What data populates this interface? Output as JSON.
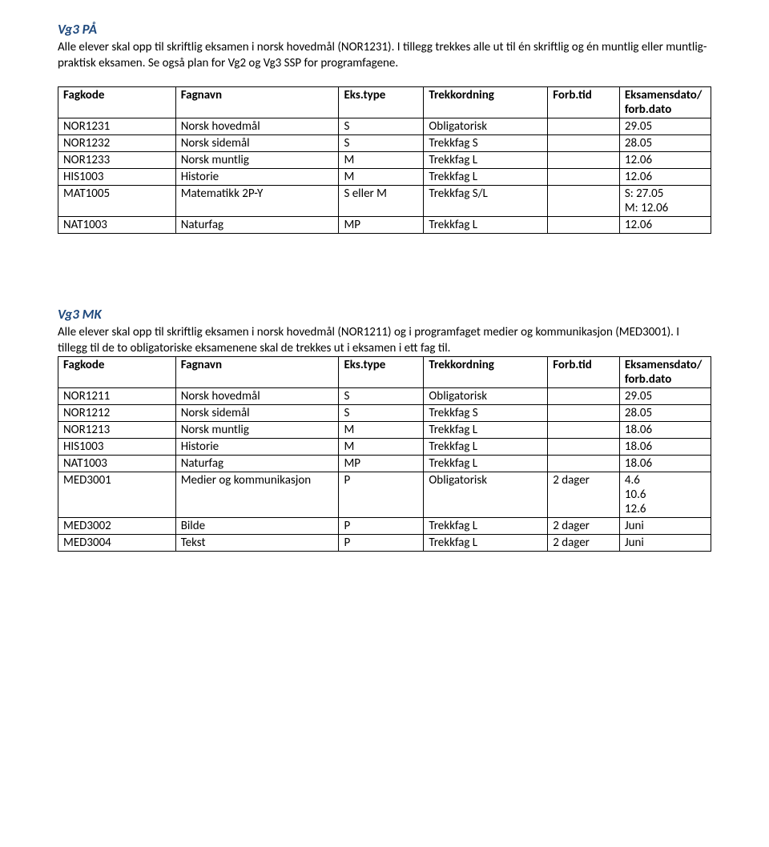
{
  "colors": {
    "heading": "#1f497d",
    "text": "#000000",
    "border": "#000000",
    "background": "#ffffff"
  },
  "fonts": {
    "body_family": "Calibri",
    "body_size_pt": 11,
    "heading_size_pt": 12
  },
  "headers": {
    "fagkode": "Fagkode",
    "fagnavn": "Fagnavn",
    "ekstype": "Eks.type",
    "trekkordning": "Trekkordning",
    "forbtid": "Forb.tid",
    "dato_line1": "Eksamensdato/",
    "dato_line2": "forb.dato"
  },
  "section1": {
    "title": "Vg3 PÅ",
    "desc": "Alle elever skal opp til skriftlig eksamen i norsk hovedmål (NOR1231). I tillegg trekkes alle ut til én skriftlig og én muntlig eller muntlig-praktisk eksamen. Se også plan for Vg2 og Vg3 SSP for programfagene.",
    "rows": [
      {
        "fagkode": "NOR1231",
        "fagnavn": "Norsk hovedmål",
        "ekstype": "S",
        "trekk": "Obligatorisk",
        "forbtid": "",
        "dato": "29.05"
      },
      {
        "fagkode": "NOR1232",
        "fagnavn": "Norsk sidemål",
        "ekstype": "S",
        "trekk": "Trekkfag S",
        "forbtid": "",
        "dato": "28.05"
      },
      {
        "fagkode": "NOR1233",
        "fagnavn": "Norsk muntlig",
        "ekstype": "M",
        "trekk": "Trekkfag L",
        "forbtid": "",
        "dato": "12.06"
      },
      {
        "fagkode": "HIS1003",
        "fagnavn": "Historie",
        "ekstype": "M",
        "trekk": "Trekkfag L",
        "forbtid": "",
        "dato": "12.06"
      },
      {
        "fagkode": "MAT1005",
        "fagnavn": "Matematikk 2P-Y",
        "ekstype": "S eller M",
        "trekk": "Trekkfag S/L",
        "forbtid": "",
        "dato": "S: 27.05\nM: 12.06"
      },
      {
        "fagkode": "NAT1003",
        "fagnavn": "Naturfag",
        "ekstype": "MP",
        "trekk": "Trekkfag L",
        "forbtid": "",
        "dato": "12.06"
      }
    ]
  },
  "section2": {
    "title": "Vg3 MK",
    "desc": "Alle elever skal opp til skriftlig eksamen i norsk hovedmål (NOR1211) og i programfaget medier og kommunikasjon (MED3001). I tillegg til de to obligatoriske eksamenene skal de trekkes ut i eksamen i ett fag til.",
    "rows": [
      {
        "fagkode": "NOR1211",
        "fagnavn": "Norsk hovedmål",
        "ekstype": "S",
        "trekk": "Obligatorisk",
        "forbtid": "",
        "dato": "29.05"
      },
      {
        "fagkode": "NOR1212",
        "fagnavn": "Norsk sidemål",
        "ekstype": "S",
        "trekk": "Trekkfag S",
        "forbtid": "",
        "dato": "28.05"
      },
      {
        "fagkode": "NOR1213",
        "fagnavn": "Norsk muntlig",
        "ekstype": "M",
        "trekk": "Trekkfag L",
        "forbtid": "",
        "dato": "18.06"
      },
      {
        "fagkode": "HIS1003",
        "fagnavn": "Historie",
        "ekstype": "M",
        "trekk": "Trekkfag L",
        "forbtid": "",
        "dato": "18.06"
      },
      {
        "fagkode": "NAT1003",
        "fagnavn": "Naturfag",
        "ekstype": "MP",
        "trekk": "Trekkfag L",
        "forbtid": "",
        "dato": "18.06"
      },
      {
        "fagkode": "MED3001",
        "fagnavn": "Medier og kommunikasjon",
        "ekstype": "P",
        "trekk": "Obligatorisk",
        "forbtid": "2 dager",
        "dato": "4.6\n10.6\n12.6"
      },
      {
        "fagkode": "MED3002",
        "fagnavn": "Bilde",
        "ekstype": "P",
        "trekk": "Trekkfag L",
        "forbtid": "2 dager",
        "dato": "Juni"
      },
      {
        "fagkode": "MED3004",
        "fagnavn": "Tekst",
        "ekstype": "P",
        "trekk": "Trekkfag L",
        "forbtid": "2 dager",
        "dato": "Juni"
      }
    ]
  }
}
